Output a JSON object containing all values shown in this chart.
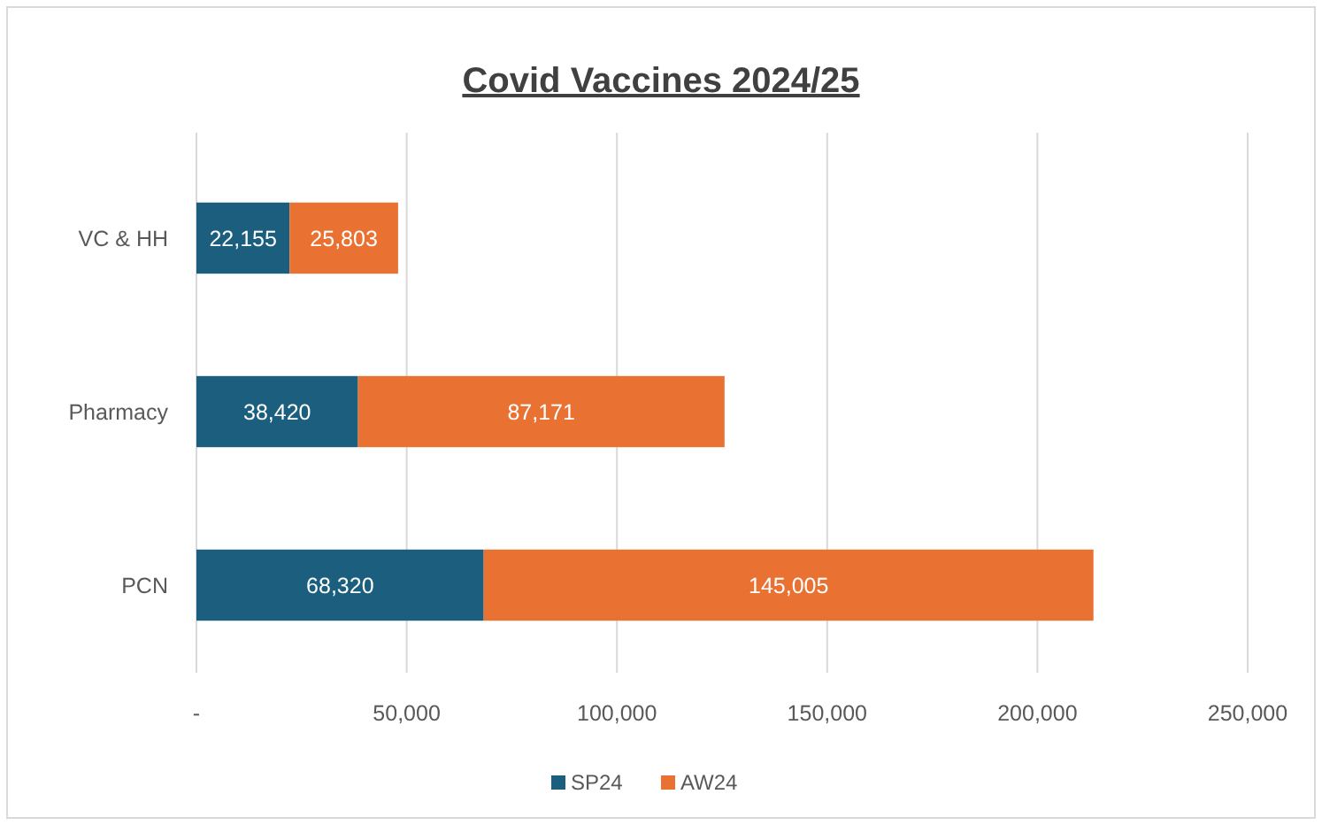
{
  "chart_data": {
    "type": "bar",
    "orientation": "horizontal",
    "stacked": true,
    "title": "Covid Vaccines 2024/25",
    "categories": [
      "VC & HH",
      "Pharmacy",
      "PCN"
    ],
    "series": [
      {
        "name": "SP24",
        "color": "#1b5e7e",
        "values": [
          22155,
          38420,
          68320
        ],
        "value_labels": [
          "22,155",
          "38,420",
          "68,320"
        ]
      },
      {
        "name": "AW24",
        "color": "#e97132",
        "values": [
          25803,
          87171,
          145005
        ],
        "value_labels": [
          "25,803",
          "87,171",
          "145,005"
        ]
      }
    ],
    "xlim": [
      0,
      250000
    ],
    "xticks": [
      {
        "value": 0,
        "label": "-"
      },
      {
        "value": 50000,
        "label": "50,000"
      },
      {
        "value": 100000,
        "label": "100,000"
      },
      {
        "value": 150000,
        "label": "150,000"
      },
      {
        "value": 200000,
        "label": "200,000"
      },
      {
        "value": 250000,
        "label": "250,000"
      }
    ],
    "grid": "x",
    "legend": "bottom"
  }
}
